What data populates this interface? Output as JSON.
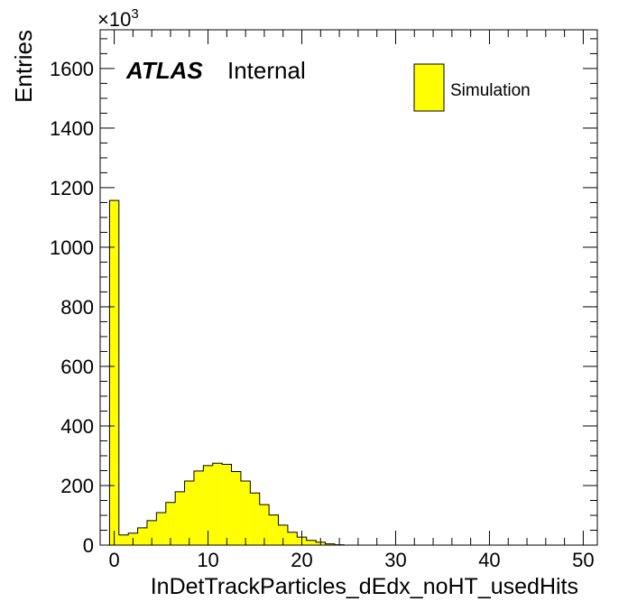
{
  "chart_data": {
    "type": "bar",
    "title": "",
    "xlabel": "InDetTrackParticles_dEdx_noHT_usedHits",
    "ylabel": "Entries",
    "y_multiplier": "×10",
    "y_multiplier_exp": "3",
    "xlim": [
      -1.5,
      51.5
    ],
    "ylim": [
      0,
      1730
    ],
    "x_ticks": [
      0,
      10,
      20,
      30,
      40,
      50
    ],
    "y_ticks": [
      0,
      200,
      400,
      600,
      800,
      1000,
      1200,
      1400,
      1600
    ],
    "bin_width": 1,
    "bin_centers": [
      0,
      1,
      2,
      3,
      4,
      5,
      6,
      7,
      8,
      9,
      10,
      11,
      12,
      13,
      14,
      15,
      16,
      17,
      18,
      19,
      20,
      21,
      22,
      23,
      24
    ],
    "values": [
      1157,
      34,
      40,
      58,
      82,
      109,
      143,
      179,
      215,
      249,
      267,
      275,
      271,
      247,
      215,
      175,
      136,
      101,
      67,
      43,
      27,
      16,
      10,
      4,
      1
    ],
    "fill_color": "#ffff00",
    "line_color": "#000000",
    "legend": {
      "entries": [
        "Simulation"
      ],
      "placement": "top-right"
    },
    "annotations": {
      "experiment": "ATLAS",
      "status": "Internal"
    }
  }
}
